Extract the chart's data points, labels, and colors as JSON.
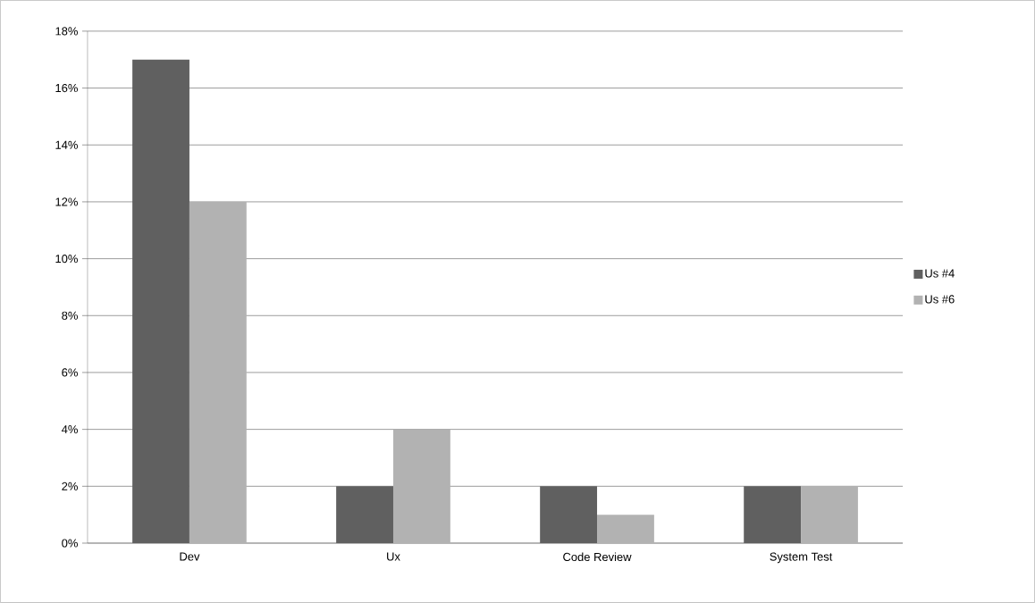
{
  "chart_data": {
    "type": "bar",
    "categories": [
      "Dev",
      "Ux",
      "Code Review",
      "System Test"
    ],
    "series": [
      {
        "name": "Us #4",
        "color": "#606060",
        "values": [
          17,
          2,
          2,
          2
        ]
      },
      {
        "name": "Us #6",
        "color": "#b2b2b2",
        "values": [
          12,
          4,
          1,
          2
        ]
      }
    ],
    "ylim": [
      0,
      18
    ],
    "yticks": [
      {
        "value": 0,
        "label": "0%"
      },
      {
        "value": 2,
        "label": "2%"
      },
      {
        "value": 4,
        "label": "4%"
      },
      {
        "value": 6,
        "label": "6%"
      },
      {
        "value": 8,
        "label": "8%"
      },
      {
        "value": 10,
        "label": "10%"
      },
      {
        "value": 12,
        "label": "12%"
      },
      {
        "value": 14,
        "label": "14%"
      },
      {
        "value": 16,
        "label": "16%"
      },
      {
        "value": 18,
        "label": "18%"
      }
    ],
    "grid": "y",
    "legend": "right"
  }
}
